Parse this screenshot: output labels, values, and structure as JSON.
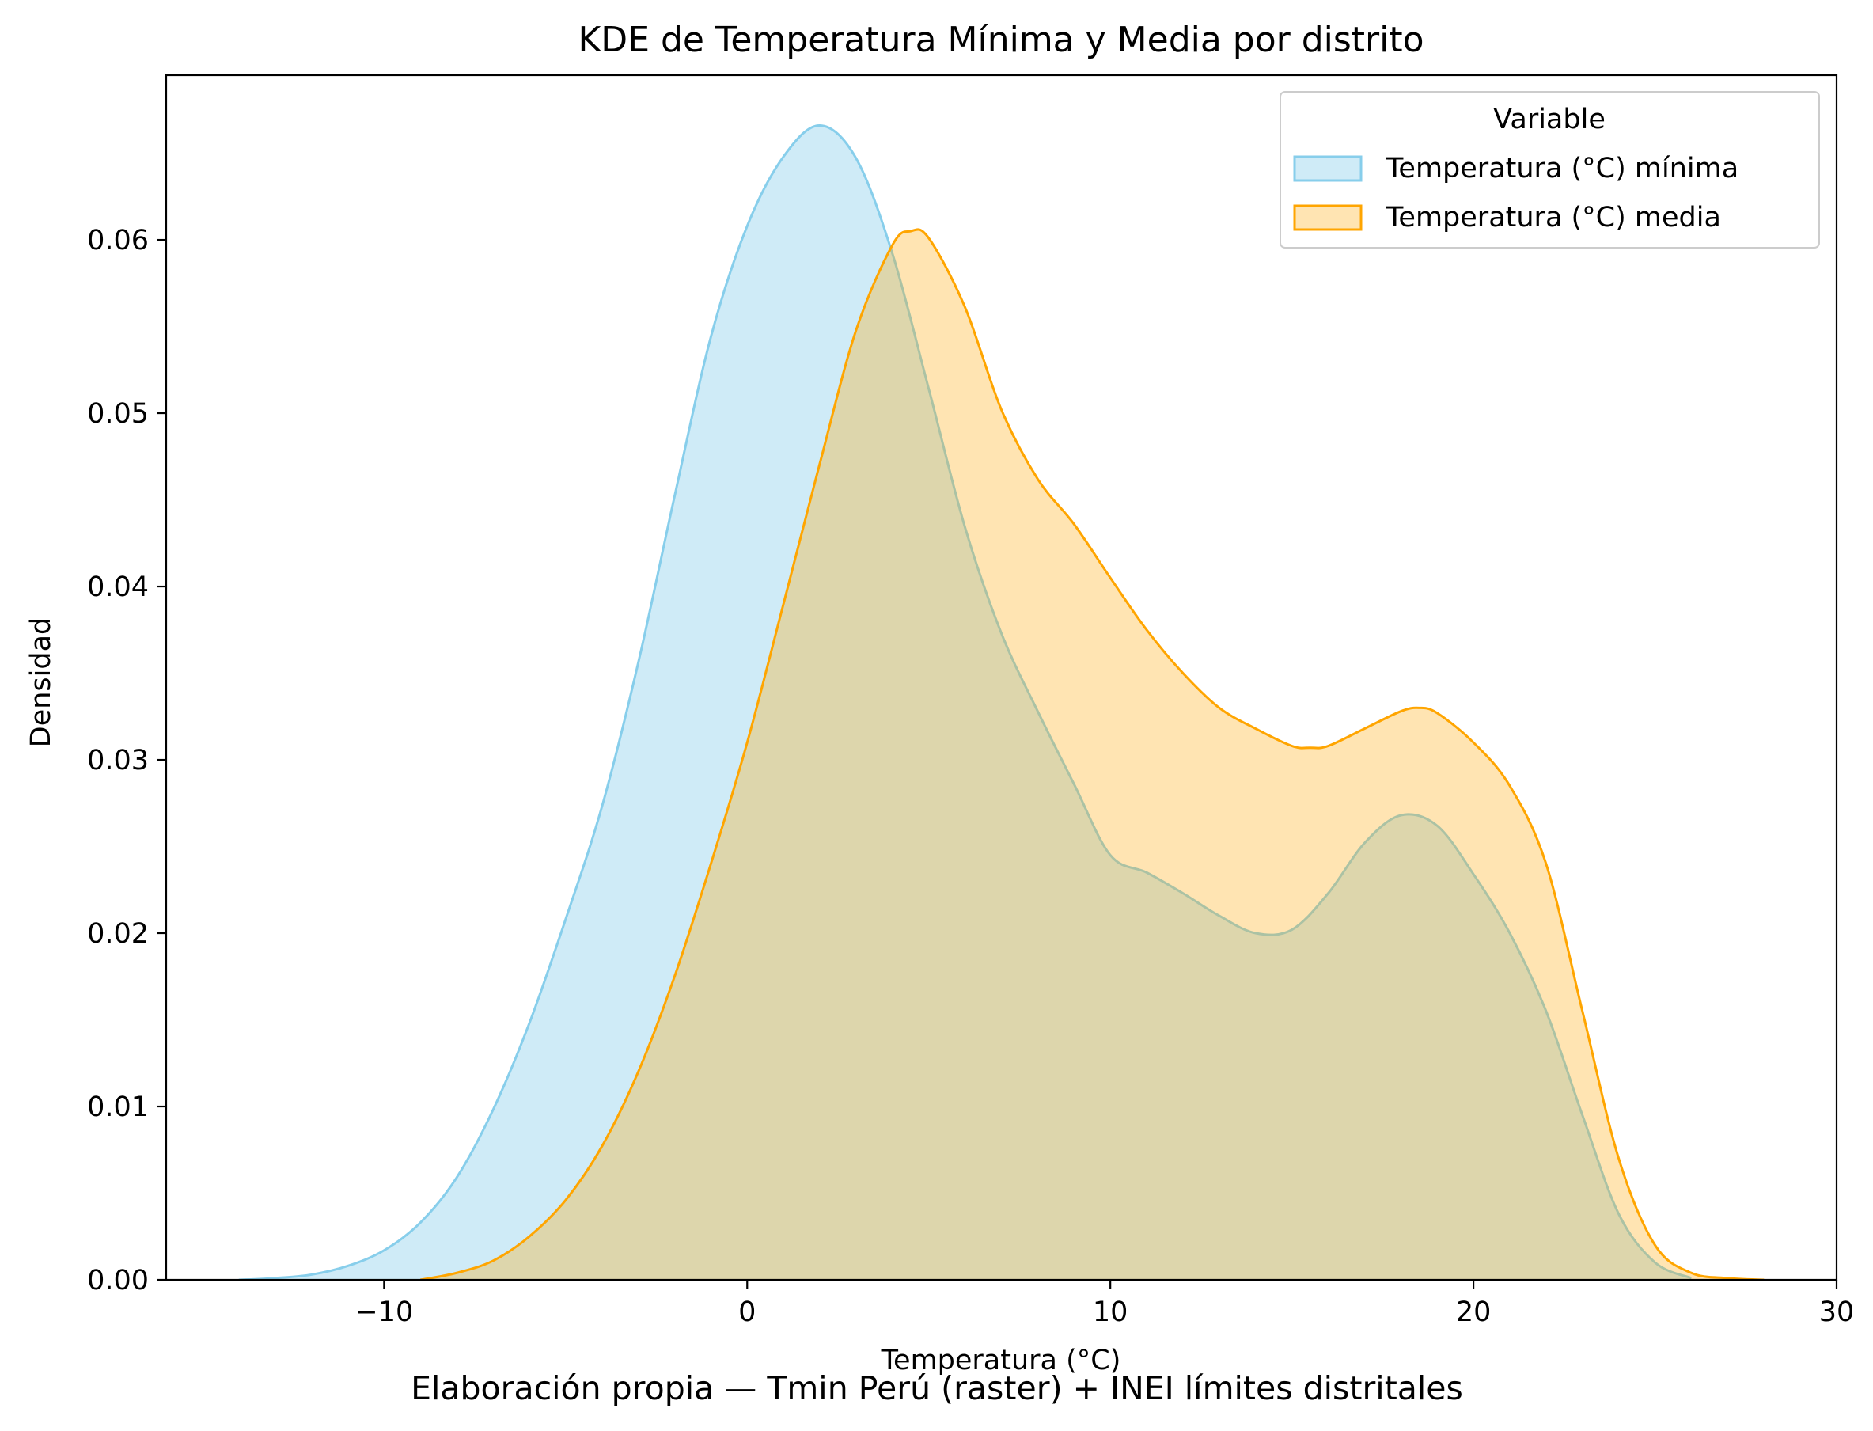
{
  "chart_data": {
    "type": "area",
    "title": "KDE de Temperatura Mínima y Media por distrito",
    "xlabel": "Temperatura (°C)",
    "ylabel": "Densidad",
    "caption": "Elaboración propia — Tmin Perú (raster) + INEI límites distritales",
    "xlim": [
      -16,
      30
    ],
    "ylim": [
      0,
      0.0695
    ],
    "xticks": [
      -10,
      0,
      10,
      20,
      30
    ],
    "xtick_labels": [
      "−10",
      "0",
      "10",
      "20",
      "30"
    ],
    "yticks": [
      0.0,
      0.01,
      0.02,
      0.03,
      0.04,
      0.05,
      0.06
    ],
    "ytick_labels": [
      "0.00",
      "0.01",
      "0.02",
      "0.03",
      "0.04",
      "0.05",
      "0.06"
    ],
    "grid": false,
    "legend": {
      "title": "Variable",
      "placement": "top-right"
    },
    "series": [
      {
        "name": "Temperatura (°C) mínima",
        "line_color": "#87ceeb",
        "fill_color": "#87ceeb",
        "fill_opacity": 0.4,
        "x": [
          -14,
          -13,
          -12,
          -11,
          -10,
          -9,
          -8,
          -7,
          -6,
          -5,
          -4,
          -3,
          -2,
          -1,
          0,
          1,
          2,
          3,
          4,
          5,
          6,
          7,
          8,
          9,
          10,
          11,
          12,
          13,
          14,
          15,
          16,
          17,
          18,
          19,
          20,
          21,
          22,
          23,
          24,
          25,
          26
        ],
        "y": [
          0.0,
          0.0001,
          0.0003,
          0.0008,
          0.0017,
          0.0033,
          0.0059,
          0.0098,
          0.0148,
          0.0208,
          0.0273,
          0.0356,
          0.0452,
          0.0544,
          0.0608,
          0.0648,
          0.0666,
          0.0647,
          0.0592,
          0.0514,
          0.0434,
          0.0373,
          0.0328,
          0.0286,
          0.0245,
          0.0235,
          0.0223,
          0.021,
          0.02,
          0.0202,
          0.0223,
          0.0252,
          0.0268,
          0.0262,
          0.0234,
          0.02,
          0.0155,
          0.0095,
          0.0038,
          0.001,
          0.0001
        ]
      },
      {
        "name": "Temperatura (°C) media",
        "line_color": "#ffa500",
        "fill_color": "#ffa500",
        "fill_opacity": 0.3,
        "x": [
          -9,
          -8,
          -7,
          -6,
          -5,
          -4,
          -3,
          -2,
          -1,
          0,
          1,
          2,
          3,
          4,
          4.5,
          5,
          6,
          7,
          8,
          9,
          10,
          11,
          12,
          13,
          14,
          15,
          15.5,
          16,
          17,
          18,
          18.5,
          19,
          20,
          21,
          22,
          23,
          24,
          25,
          26,
          27,
          28
        ],
        "y": [
          0.0,
          0.0004,
          0.0011,
          0.0025,
          0.0046,
          0.0077,
          0.012,
          0.0175,
          0.024,
          0.031,
          0.039,
          0.0471,
          0.0548,
          0.0597,
          0.0605,
          0.0601,
          0.0561,
          0.0502,
          0.0462,
          0.0436,
          0.0405,
          0.0375,
          0.035,
          0.033,
          0.0318,
          0.0308,
          0.0307,
          0.0308,
          0.0318,
          0.0328,
          0.033,
          0.0327,
          0.031,
          0.0285,
          0.024,
          0.0155,
          0.007,
          0.002,
          0.0004,
          0.0001,
          0.0
        ]
      }
    ]
  }
}
